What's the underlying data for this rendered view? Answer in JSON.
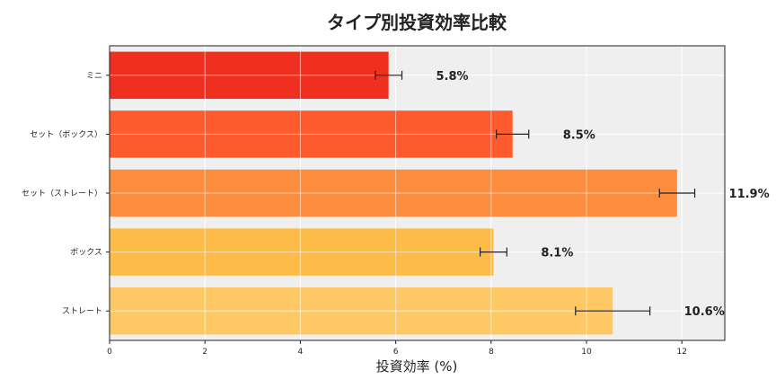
{
  "chart_data": {
    "type": "bar",
    "orientation": "horizontal",
    "title": "タイプ別投資効率比較",
    "xlabel": "投資効率 (%)",
    "ylabel": "",
    "xlim": [
      0,
      12.9
    ],
    "xticks": [
      "0",
      "2",
      "4",
      "6",
      "8",
      "10",
      "12"
    ],
    "grid": true,
    "categories": [
      "ミニ",
      "セット（ボックス）",
      "セット（ストレート）",
      "ボックス",
      "ストレート"
    ],
    "values": [
      5.85,
      8.45,
      11.9,
      8.05,
      10.55
    ],
    "errors": [
      0.28,
      0.34,
      0.37,
      0.28,
      0.78
    ],
    "value_labels": [
      "5.8%",
      "8.5%",
      "11.9%",
      "8.1%",
      "10.6%"
    ],
    "colors": [
      "#ef3020",
      "#fd5a2e",
      "#fd8c3c",
      "#febb47",
      "#fec965"
    ]
  }
}
